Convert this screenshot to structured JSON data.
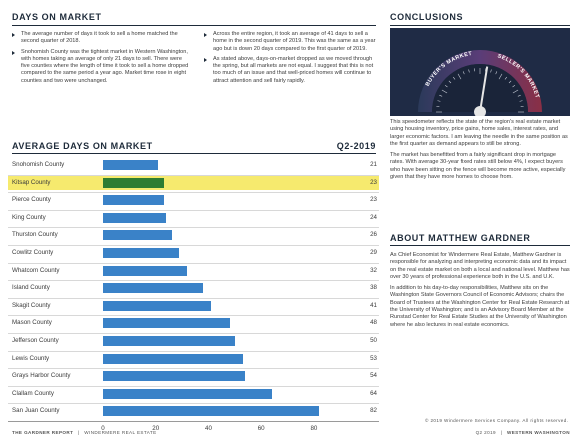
{
  "days_on_market": {
    "heading": "DAYS ON MARKET",
    "left_bullets": [
      "The average number of days it took to sell a home matched the second quarter of 2018.",
      "Snohomish County was the tightest market in Western Washington, with homes taking an average of only 21 days to sell. There were five counties where the length of time it took to sell a home dropped compared to the same period a year ago. Market time rose in eight counties and two were unchanged."
    ],
    "right_bullets": [
      "Across the entire region, it took an average of 41 days to sell a home in the second quarter of 2019. This was the same as a year ago but is down 20 days compared to the first quarter of 2019.",
      "As stated above, days-on-market dropped as we moved through the spring, but all markets are not equal. I suggest that this is not too much of an issue and that well-priced homes will continue to attract attention and sell fairly rapidly."
    ]
  },
  "chart_data": {
    "type": "bar",
    "orientation": "horizontal",
    "title": "AVERAGE DAYS ON MARKET",
    "period": "Q2-2019",
    "categories": [
      "Snohomish County",
      "Kitsap County",
      "Pierce County",
      "King County",
      "Thurston County",
      "Cowlitz County",
      "Whatcom County",
      "Island County",
      "Skagit County",
      "Mason County",
      "Jefferson County",
      "Lewis County",
      "Grays Harbor County",
      "Clallam County",
      "San Juan County"
    ],
    "values": [
      21,
      23,
      23,
      24,
      26,
      29,
      32,
      38,
      41,
      48,
      50,
      53,
      54,
      64,
      82
    ],
    "highlighted": "Kitsap County",
    "xlim": [
      0,
      88
    ],
    "ticks": [
      "0",
      "20",
      "40",
      "60",
      "80"
    ],
    "bar_color": "#3a82c8",
    "highlight_bar_color": "#2e7d32",
    "highlight_row_color": "#f6ea6e"
  },
  "conclusions": {
    "heading": "CONCLUSIONS",
    "gauge": {
      "left_label": "BUYER'S MARKET",
      "right_label": "SELLER'S MARKET",
      "needle_percent": 0.55
    },
    "paragraphs": [
      "This speedometer reflects the state of the region's real estate market using housing inventory, price gains, home sales, interest rates, and larger economic factors. I am leaving the needle in the same position as the first quarter as demand appears to still be strong.",
      "The market has benefitted from a fairly significant drop in mortgage rates. With average 30-year fixed rates still below 4%, I expect buyers who have been sitting on the fence will become more active, especially given that they have more homes to choose from."
    ]
  },
  "about": {
    "heading": "ABOUT MATTHEW GARDNER",
    "paragraphs": [
      "As Chief Economist for Windermere Real Estate, Matthew Gardner is responsible for analyzing and interpreting economic data and its impact on the real estate market on both a local and national level. Matthew has over 30 years of professional experience both in the U.S. and U.K.",
      "In addition to his day-to-day responsibilities, Matthew sits on the Washington State Governors Council of Economic Advisors; chairs the Board of Trustees at the Washington Center for Real Estate Research at the University of Washington; and is an Advisory Board Member at the Runstad Center for Real Estate Studies at the University of Washington where he also lectures in real estate economics."
    ]
  },
  "footer": {
    "left": "THE GARDNER REPORT",
    "left_suffix": "WINDERMERE REAL ESTATE",
    "copyright": "© 2019 Windermere Services Company. All rights reserved.",
    "right_period": "Q2 2019",
    "right_region": "WESTERN WASHINGTON"
  }
}
